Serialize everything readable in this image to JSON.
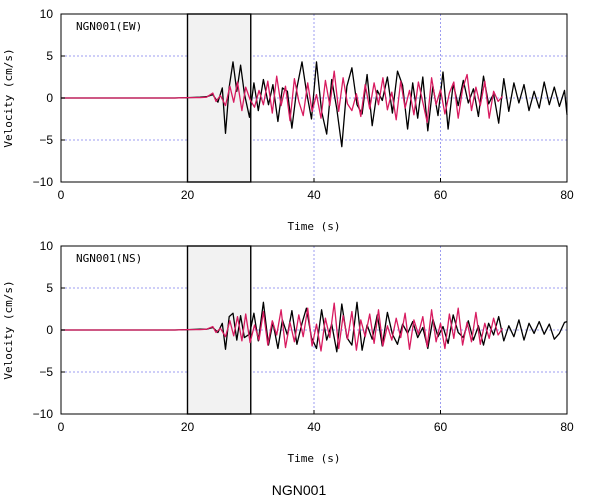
{
  "caption": "NGN001",
  "colors": {
    "series_black": "#000000",
    "series_magenta": "#d81b60",
    "grid": "#9c9cf0",
    "box_fill": "#f2f2f2"
  },
  "chart_data": [
    {
      "type": "line",
      "title": "NGN001(EW)",
      "xlabel": "Time (s)",
      "ylabel": "Velocity (cm/s)",
      "xlim": [
        0,
        80
      ],
      "ylim": [
        -10,
        10
      ],
      "xticks": [
        "0",
        "20",
        "40",
        "60",
        "80"
      ],
      "yticks": [
        "10",
        "5",
        "0",
        "−5",
        "−10"
      ],
      "grid": true,
      "highlight_window": [
        20,
        30
      ],
      "series": [
        {
          "color": "#000000",
          "x": [
            0,
            5,
            10,
            15,
            18,
            20,
            22,
            23,
            24,
            24.8,
            25.5,
            26,
            26.6,
            27.2,
            27.8,
            28.4,
            29,
            29.8,
            30.5,
            31.2,
            32,
            32.8,
            33.5,
            34.3,
            35,
            35.8,
            36.5,
            37.3,
            38.1,
            38.8,
            39.6,
            40.4,
            41.2,
            42,
            42.8,
            43.6,
            44.4,
            45.2,
            46,
            46.8,
            47.6,
            48.4,
            49.2,
            50,
            50.8,
            51.6,
            52.4,
            53.2,
            54,
            54.8,
            55.6,
            56.4,
            57.2,
            58,
            58.8,
            59.6,
            60.4,
            61.2,
            62,
            62.8,
            63.6,
            64.4,
            65.2,
            66,
            66.8,
            67.6,
            68.4,
            69.2,
            70,
            70.8,
            71.6,
            72.4,
            73.2,
            74,
            74.8,
            75.6,
            76.4,
            77.2,
            78,
            78.8,
            79.6,
            80
          ],
          "y": [
            0,
            0,
            0,
            0,
            0,
            0.05,
            0.1,
            0.15,
            0.4,
            -0.5,
            1.2,
            -4.2,
            1.3,
            4.3,
            0.8,
            3.9,
            0.5,
            -2.3,
            1.8,
            -1.5,
            2.2,
            -0.8,
            1.6,
            -2.8,
            1.2,
            0.8,
            -3.6,
            1.2,
            4.3,
            0.8,
            -2.5,
            4.3,
            -1.6,
            -4.3,
            2.2,
            -1.3,
            -5.8,
            1.4,
            3.6,
            -0.8,
            -1.9,
            2.8,
            -3.3,
            0.9,
            -0.3,
            2.5,
            -1.8,
            3.2,
            1.5,
            -3.7,
            1.8,
            -2.4,
            2.5,
            -3.9,
            1.4,
            -2.1,
            3.1,
            -3.7,
            1.7,
            -0.9,
            2.1,
            -0.6,
            1.1,
            -2.2,
            2.6,
            -0.7,
            0.5,
            -3.0,
            2.3,
            -1.6,
            1.8,
            -0.6,
            1.6,
            -1.5,
            0.8,
            -1.2,
            1.9,
            -0.8,
            1.3,
            -1.0,
            0.9,
            -2.0
          ]
        },
        {
          "color": "#d81b60",
          "x": [
            0,
            5,
            10,
            15,
            18,
            20,
            22,
            23,
            24,
            24.5,
            25.2,
            26,
            26.7,
            27.3,
            27.9,
            28.6,
            29.2,
            29.9,
            30.6,
            31.3,
            32,
            32.7,
            33.4,
            34.1,
            34.8,
            35.5,
            36.2,
            36.9,
            37.6,
            38.3,
            39,
            39.7,
            40.4,
            41.1,
            41.8,
            42.5,
            43.2,
            43.9,
            44.6,
            45.3,
            46,
            46.7,
            47.4,
            48.1,
            48.8,
            49.5,
            50.2,
            50.9,
            51.6,
            52.3,
            53,
            53.7,
            54.4,
            55.1,
            55.8,
            56.5,
            57.2,
            57.9,
            58.6,
            59.3,
            60,
            60.7,
            61.4,
            62.1,
            62.8,
            63.5,
            64.2,
            64.9,
            65.6,
            66.3,
            67,
            67.7,
            68.4,
            69.1,
            69.8
          ],
          "y": [
            0,
            0,
            0,
            0,
            0,
            0.05,
            0.05,
            0.1,
            0.6,
            -0.4,
            0.3,
            -0.9,
            1.4,
            -0.5,
            1.9,
            -1.5,
            1.3,
            -0.2,
            -1.1,
            0.9,
            -0.8,
            2.0,
            -1.8,
            2.6,
            -0.9,
            1.4,
            -2.7,
            2.3,
            -0.4,
            -2.1,
            1.8,
            -1.6,
            0.4,
            -2.4,
            2.1,
            -0.9,
            3.2,
            -1.6,
            2.4,
            -0.7,
            -1.5,
            0.5,
            -2.2,
            1.6,
            -1.3,
            1.8,
            -0.8,
            2.4,
            -1.4,
            0.7,
            -2.6,
            2.0,
            -1.2,
            0.9,
            -2.0,
            1.9,
            -0.5,
            -2.9,
            2.4,
            -0.8,
            1.0,
            -1.9,
            0.6,
            1.9,
            -2.4,
            1.1,
            2.8,
            -1.5,
            1.3,
            -0.9,
            2.0,
            -2.4,
            0.8,
            -0.4,
            0.2
          ]
        }
      ]
    },
    {
      "type": "line",
      "title": "NGN001(NS)",
      "xlabel": "Time (s)",
      "ylabel": "Velocity (cm/s)",
      "xlim": [
        0,
        80
      ],
      "ylim": [
        -10,
        10
      ],
      "xticks": [
        "0",
        "20",
        "40",
        "60",
        "80"
      ],
      "yticks": [
        "10",
        "5",
        "0",
        "−5",
        "−10"
      ],
      "grid": true,
      "highlight_window": [
        20,
        30
      ],
      "series": [
        {
          "color": "#000000",
          "x": [
            0,
            5,
            10,
            15,
            18,
            20,
            22,
            23,
            24,
            24.8,
            25.5,
            26,
            26.6,
            27.2,
            27.8,
            28.4,
            29,
            29.8,
            30.5,
            31.2,
            32,
            32.8,
            33.5,
            34.3,
            35,
            35.8,
            36.5,
            37.3,
            38.1,
            38.8,
            39.6,
            40.4,
            41.2,
            42,
            42.8,
            43.6,
            44.4,
            45.2,
            46,
            46.8,
            47.6,
            48.4,
            49.2,
            50,
            50.8,
            51.6,
            52.4,
            53.2,
            54,
            54.8,
            55.6,
            56.4,
            57.2,
            58,
            58.8,
            59.6,
            60.4,
            61.2,
            62,
            62.8,
            63.6,
            64.4,
            65.2,
            66,
            66.8,
            67.6,
            68.4,
            69.2,
            70,
            70.8,
            71.6,
            72.4,
            73.2,
            74,
            74.8,
            75.6,
            76.4,
            77.2,
            78,
            78.8,
            79.6,
            80
          ],
          "y": [
            0,
            0,
            0,
            0,
            0,
            0.05,
            0.1,
            0.1,
            0.3,
            -0.3,
            0.8,
            -2.3,
            1.6,
            2.0,
            -1.2,
            1.7,
            -0.9,
            -0.5,
            2.0,
            -1.3,
            3.3,
            -1.8,
            0.9,
            -2.2,
            1.2,
            -0.6,
            2.3,
            -1.7,
            0.8,
            2.6,
            -0.9,
            -2.2,
            2.4,
            -1.2,
            0.7,
            -2.6,
            3.1,
            -0.9,
            -1.8,
            3.3,
            -2.4,
            0.6,
            -1.1,
            1.8,
            -1.9,
            2.1,
            -0.5,
            -1.7,
            0.7,
            -0.4,
            1.0,
            -0.9,
            0.3,
            -2.2,
            1.3,
            -0.8,
            0.4,
            -1.6,
            1.8,
            -0.3,
            -0.9,
            1.1,
            -1.2,
            0.5,
            -1.8,
            0.8,
            -0.6,
            1.6,
            -1.3,
            0.5,
            -0.8,
            1.2,
            -1.2,
            0.8,
            -0.4,
            1.0,
            -0.5,
            0.7,
            -1.1,
            -0.4,
            0.9,
            1.0
          ]
        },
        {
          "color": "#d81b60",
          "x": [
            0,
            5,
            10,
            15,
            18,
            20,
            22,
            23,
            24,
            24.5,
            25.2,
            26,
            26.7,
            27.3,
            27.9,
            28.6,
            29.2,
            29.9,
            30.6,
            31.3,
            32,
            32.7,
            33.4,
            34.1,
            34.8,
            35.5,
            36.2,
            36.9,
            37.6,
            38.3,
            39,
            39.7,
            40.4,
            41.1,
            41.8,
            42.5,
            43.2,
            43.9,
            44.6,
            45.3,
            46,
            46.7,
            47.4,
            48.1,
            48.8,
            49.5,
            50.2,
            50.9,
            51.6,
            52.3,
            53,
            53.7,
            54.4,
            55.1,
            55.8,
            56.5,
            57.2,
            57.9,
            58.6,
            59.3,
            60,
            60.7,
            61.4,
            62.1,
            62.8,
            63.5,
            64.2,
            64.9,
            65.6,
            66.3,
            67,
            67.7,
            68.4,
            69.1,
            69.8
          ],
          "y": [
            0,
            0,
            0,
            0,
            0,
            0.05,
            0.05,
            0.1,
            0.4,
            -0.3,
            0.2,
            -0.8,
            1.1,
            -0.7,
            1.6,
            -1.3,
            1.9,
            -1.5,
            0.6,
            -1.2,
            2.2,
            -1.8,
            1.1,
            -0.6,
            2.4,
            -2.1,
            0.9,
            -1.4,
            1.8,
            -0.8,
            2.6,
            -1.9,
            0.7,
            -2.5,
            1.4,
            -0.9,
            3.2,
            -2.2,
            1.7,
            -1.1,
            2.2,
            -2.4,
            1.2,
            -0.8,
            1.9,
            -1.6,
            2.4,
            -1.9,
            0.5,
            -1.2,
            1.4,
            -0.9,
            2.0,
            -2.3,
            1.2,
            -0.5,
            1.6,
            -2.0,
            2.4,
            -1.4,
            0.8,
            -2.2,
            1.9,
            -1.0,
            2.6,
            -1.8,
            0.9,
            -1.4,
            2.1,
            -1.7,
            0.8,
            -1.0,
            1.4,
            -0.6,
            0.2
          ]
        }
      ]
    }
  ]
}
